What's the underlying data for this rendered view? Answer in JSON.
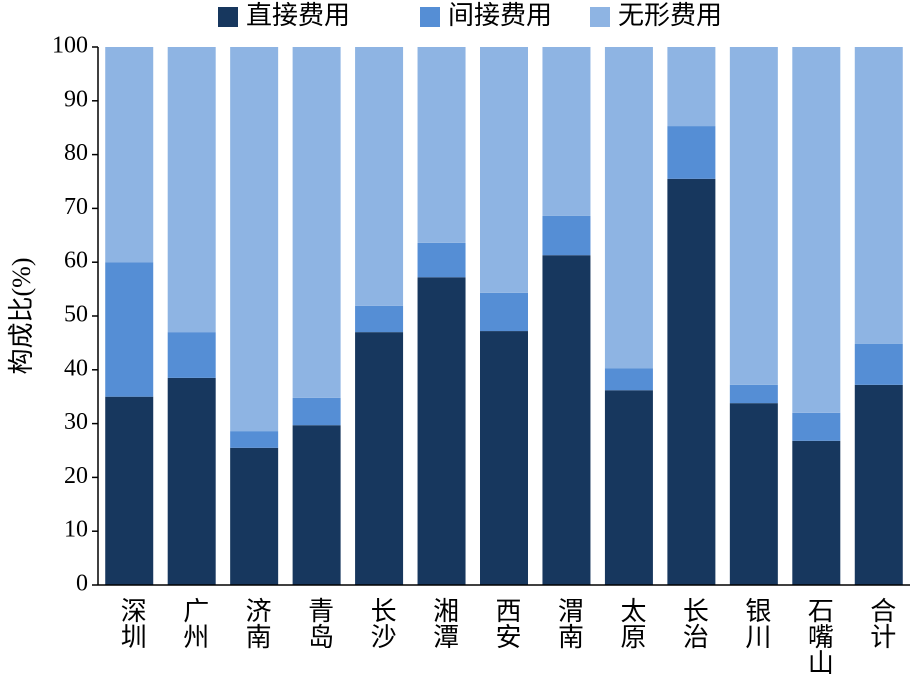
{
  "chart_data": {
    "type": "stacked_bar",
    "y_label": "构成比(%)",
    "categories": [
      "深圳",
      "广州",
      "济南",
      "青岛",
      "长沙",
      "湘潭",
      "西安",
      "渭南",
      "太原",
      "长治",
      "银川",
      "石嘴山",
      "合计"
    ],
    "series": [
      {
        "name": "直接费用",
        "color": "#17375e",
        "values": [
          35.0,
          38.5,
          25.5,
          29.7,
          47.0,
          57.2,
          47.2,
          61.3,
          36.2,
          75.5,
          33.8,
          26.8,
          37.2
        ]
      },
      {
        "name": "间接费用",
        "color": "#558ed5",
        "values": [
          25.0,
          8.5,
          3.1,
          5.1,
          4.9,
          6.4,
          7.1,
          7.3,
          4.1,
          9.8,
          3.4,
          5.2,
          7.6
        ]
      },
      {
        "name": "无形费用",
        "color": "#8eb4e3",
        "values": [
          40.0,
          53.0,
          71.4,
          65.2,
          48.1,
          36.4,
          45.7,
          31.4,
          59.7,
          14.7,
          62.8,
          68.0,
          55.2
        ]
      }
    ],
    "ylim": [
      0,
      100
    ],
    "yticks": [
      0,
      10,
      20,
      30,
      40,
      50,
      60,
      70,
      80,
      90,
      100
    ],
    "legend": "top"
  }
}
